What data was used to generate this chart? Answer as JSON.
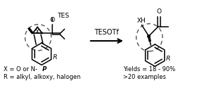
{
  "background_color": "#ffffff",
  "line_color": "#000000",
  "text_color": "#000000",
  "dashed_color": "#555555",
  "reagent": "TESOTf",
  "label_x1": "X = O or N-",
  "label_x2": "P",
  "label_r": "R = alkyl, alkoxy, halogen",
  "yield_text": "Yields = 18 - 90%",
  "examples_text": ">20 examples",
  "figsize": [
    2.83,
    1.25
  ],
  "dpi": 100
}
